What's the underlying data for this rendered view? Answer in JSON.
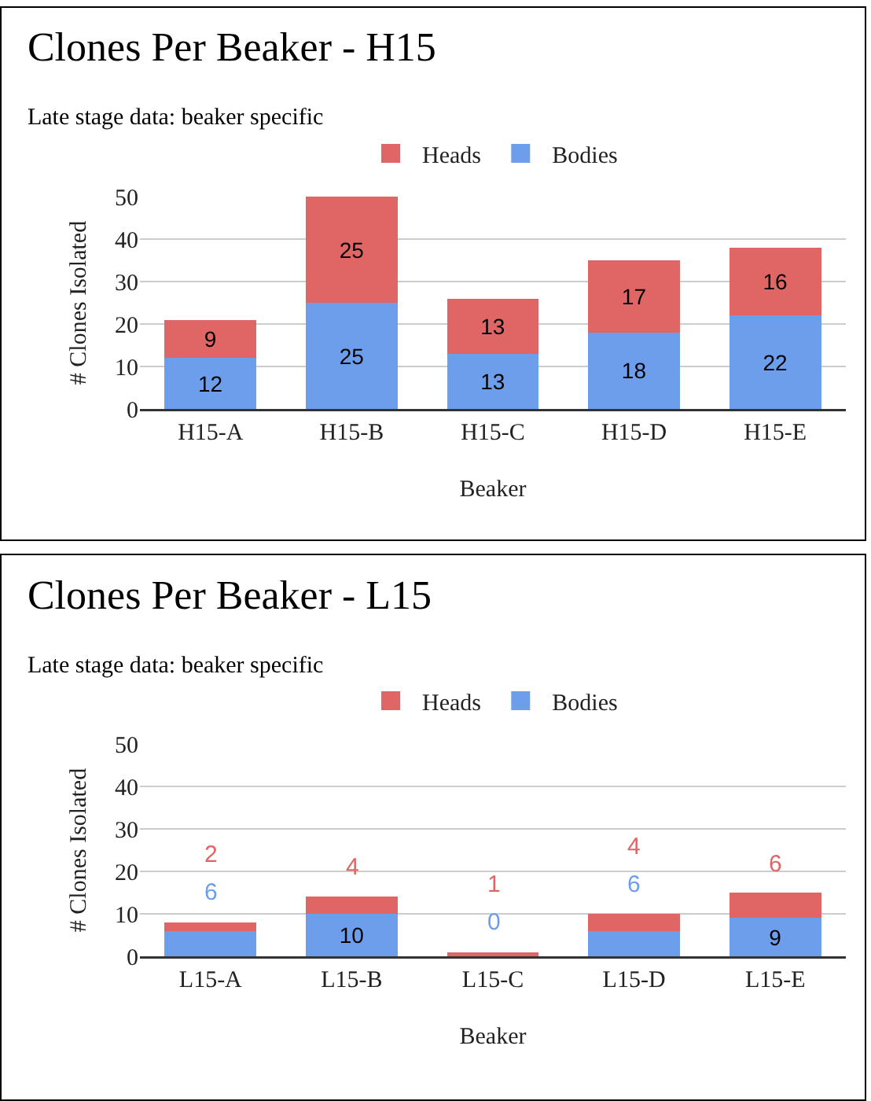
{
  "chart_data": [
    {
      "type": "bar",
      "title": "Clones Per Beaker - H15",
      "subtitle": "Late stage data: beaker specific",
      "xlabel": "Beaker",
      "ylabel": "# Clones Isolated",
      "categories": [
        "H15-A",
        "H15-B",
        "H15-C",
        "H15-D",
        "H15-E"
      ],
      "stacked": true,
      "series": [
        {
          "name": "Bodies",
          "color": "#6d9eeb",
          "values": [
            12,
            25,
            13,
            18,
            22
          ]
        },
        {
          "name": "Heads",
          "color": "#e06666",
          "values": [
            9,
            25,
            13,
            17,
            16
          ]
        }
      ],
      "ylim": [
        0,
        50
      ],
      "yticks": [
        0,
        10,
        20,
        30,
        40,
        50
      ],
      "grid": "y",
      "legend": "top",
      "data_labels": true
    },
    {
      "type": "bar",
      "title": "Clones Per Beaker - L15",
      "subtitle": "Late stage data: beaker specific",
      "xlabel": "Beaker",
      "ylabel": "# Clones Isolated",
      "categories": [
        "L15-A",
        "L15-B",
        "L15-C",
        "L15-D",
        "L15-E"
      ],
      "stacked": true,
      "series": [
        {
          "name": "Bodies",
          "color": "#6d9eeb",
          "values": [
            6,
            10,
            0,
            6,
            9
          ]
        },
        {
          "name": "Heads",
          "color": "#e06666",
          "values": [
            2,
            4,
            1,
            4,
            6
          ]
        }
      ],
      "ylim": [
        0,
        50
      ],
      "yticks": [
        0,
        10,
        20,
        30,
        40,
        50
      ],
      "grid": "y",
      "legend": "top",
      "data_labels": true
    }
  ]
}
